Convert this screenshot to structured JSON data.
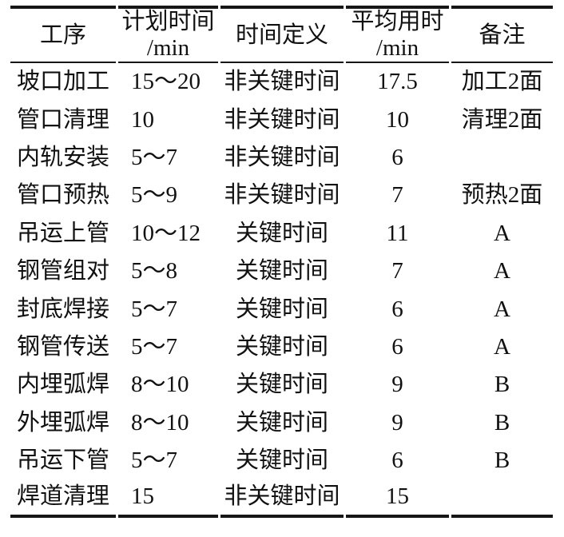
{
  "table": {
    "colors": {
      "text": "#111111",
      "rule": "#161616",
      "background": "#ffffff"
    },
    "columns": [
      {
        "label": "工序",
        "unit": ""
      },
      {
        "label": "计划时间",
        "unit": "/min"
      },
      {
        "label": "时间定义",
        "unit": ""
      },
      {
        "label": "平均用时",
        "unit": "/min"
      },
      {
        "label": "备注",
        "unit": ""
      }
    ],
    "rows": [
      {
        "process": "坡口加工",
        "planned_min": "15～20",
        "definition": "非关键时间",
        "average_min": "17.5",
        "remark": "加工2面"
      },
      {
        "process": "管口清理",
        "planned_min": "10",
        "definition": "非关键时间",
        "average_min": "10",
        "remark": "清理2面"
      },
      {
        "process": "内轨安装",
        "planned_min": "5～7",
        "definition": "非关键时间",
        "average_min": "6",
        "remark": ""
      },
      {
        "process": "管口预热",
        "planned_min": "5～9",
        "definition": "非关键时间",
        "average_min": "7",
        "remark": "预热2面"
      },
      {
        "process": "吊运上管",
        "planned_min": "10～12",
        "definition": "关键时间",
        "average_min": "11",
        "remark": "A"
      },
      {
        "process": "钢管组对",
        "planned_min": "5～8",
        "definition": "关键时间",
        "average_min": "7",
        "remark": "A"
      },
      {
        "process": "封底焊接",
        "planned_min": "5～7",
        "definition": "关键时间",
        "average_min": "6",
        "remark": "A"
      },
      {
        "process": "钢管传送",
        "planned_min": "5～7",
        "definition": "关键时间",
        "average_min": "6",
        "remark": "A"
      },
      {
        "process": "内埋弧焊",
        "planned_min": "8～10",
        "definition": "关键时间",
        "average_min": "9",
        "remark": "B"
      },
      {
        "process": "外埋弧焊",
        "planned_min": "8～10",
        "definition": "关键时间",
        "average_min": "9",
        "remark": "B"
      },
      {
        "process": "吊运下管",
        "planned_min": "5～7",
        "definition": "关键时间",
        "average_min": "6",
        "remark": "B"
      },
      {
        "process": "焊道清理",
        "planned_min": "15",
        "definition": "非关键时间",
        "average_min": "15",
        "remark": ""
      }
    ]
  }
}
